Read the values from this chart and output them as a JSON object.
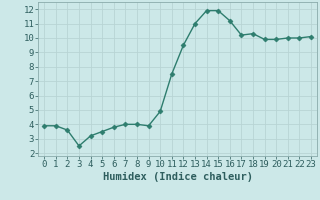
{
  "x": [
    0,
    1,
    2,
    3,
    4,
    5,
    6,
    7,
    8,
    9,
    10,
    11,
    12,
    13,
    14,
    15,
    16,
    17,
    18,
    19,
    20,
    21,
    22,
    23
  ],
  "y": [
    3.9,
    3.9,
    3.6,
    2.5,
    3.2,
    3.5,
    3.8,
    4.0,
    4.0,
    3.9,
    4.9,
    7.5,
    9.5,
    11.0,
    11.9,
    11.9,
    11.2,
    10.2,
    10.3,
    9.9,
    9.9,
    10.0,
    10.0,
    10.1
  ],
  "line_color": "#2e7d6e",
  "marker": "D",
  "marker_size": 2.5,
  "xlabel": "Humidex (Indice chaleur)",
  "xlim": [
    -0.5,
    23.5
  ],
  "ylim": [
    1.8,
    12.5
  ],
  "yticks": [
    2,
    3,
    4,
    5,
    6,
    7,
    8,
    9,
    10,
    11,
    12
  ],
  "xticks": [
    0,
    1,
    2,
    3,
    4,
    5,
    6,
    7,
    8,
    9,
    10,
    11,
    12,
    13,
    14,
    15,
    16,
    17,
    18,
    19,
    20,
    21,
    22,
    23
  ],
  "bg_color": "#cce8e8",
  "grid_color": "#b8d4d4",
  "spine_color": "#8aabab",
  "font_color": "#2e5e5e",
  "xlabel_fontsize": 7.5,
  "tick_fontsize": 6.5,
  "linewidth": 1.0
}
